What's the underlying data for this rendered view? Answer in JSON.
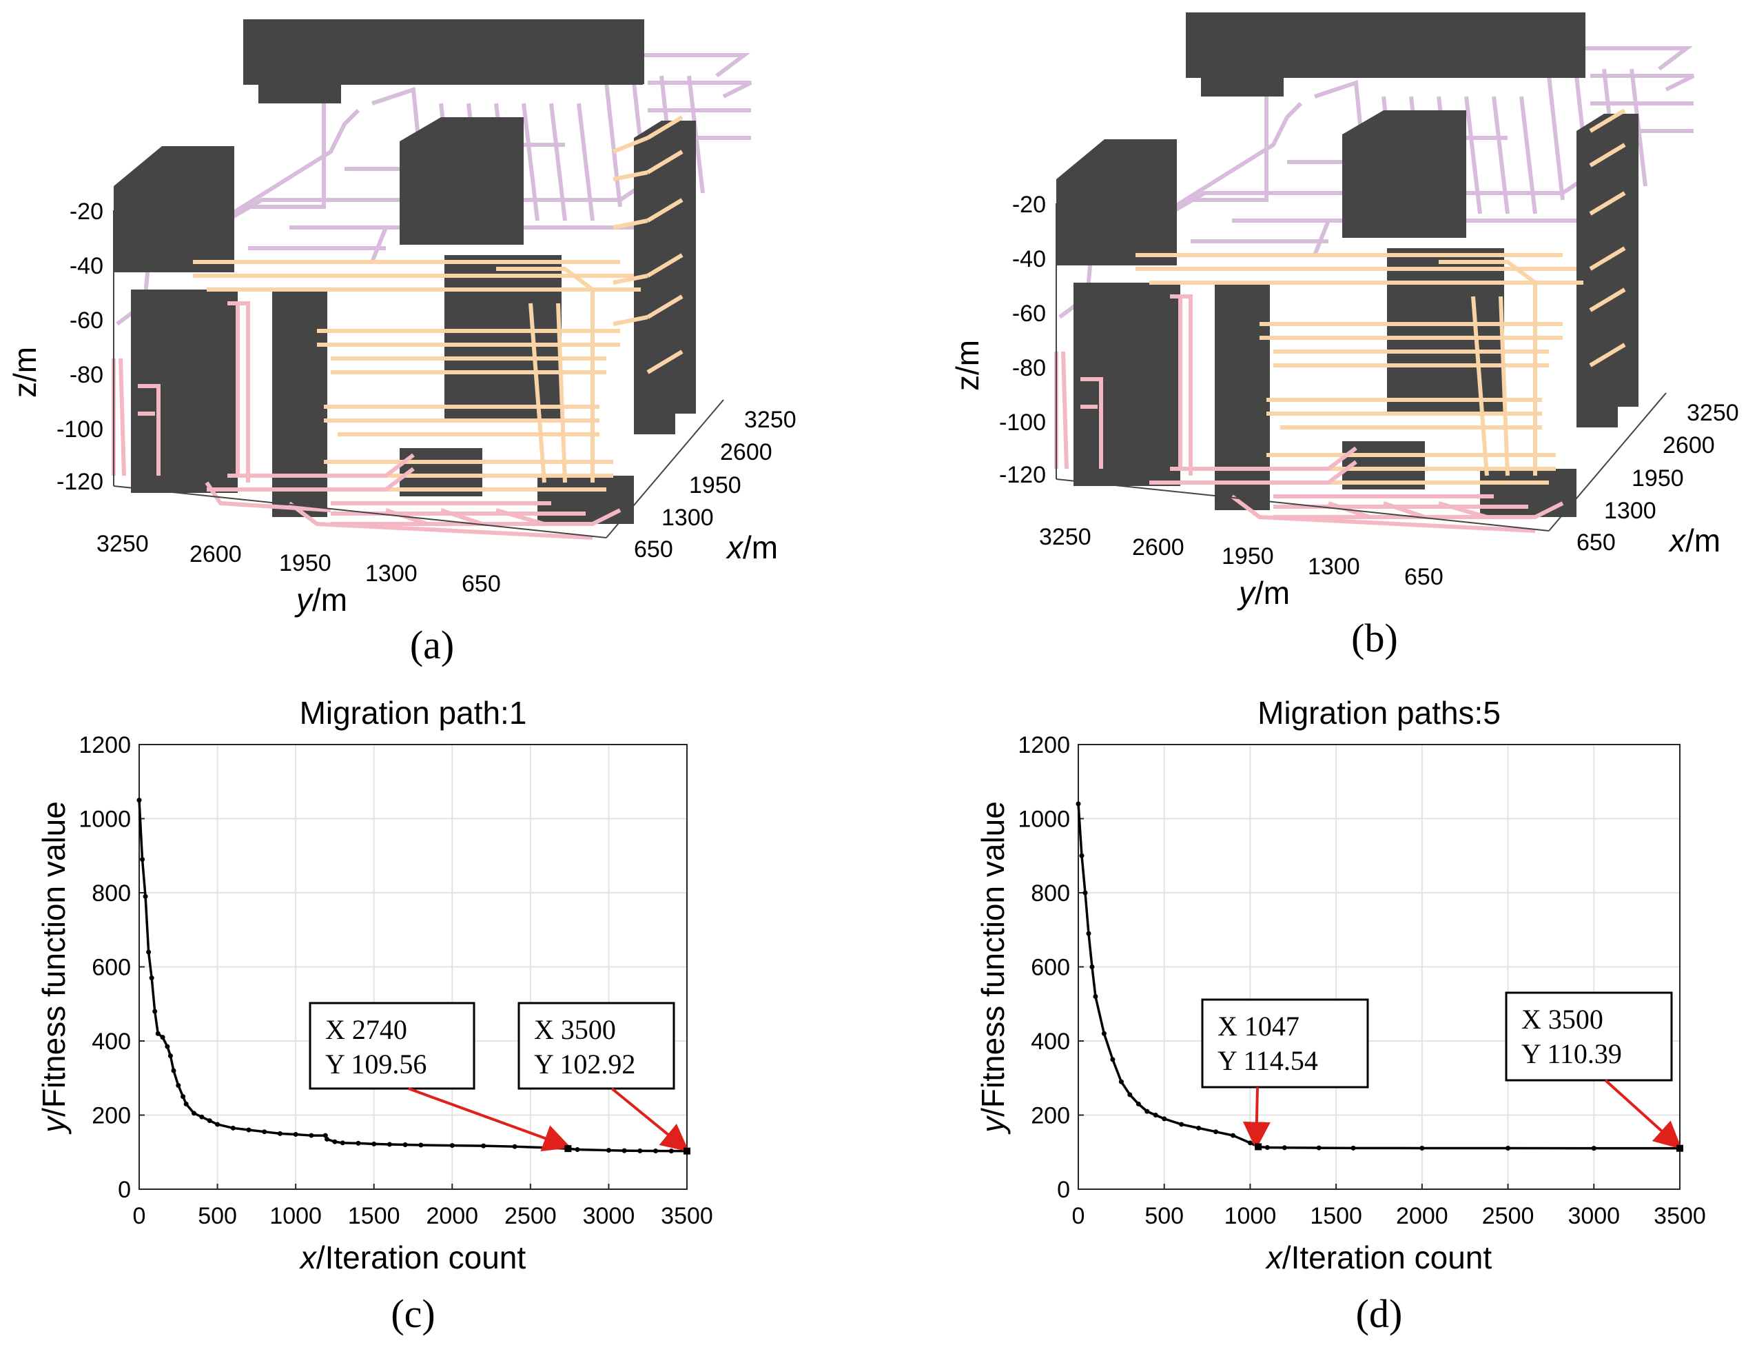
{
  "colors": {
    "obstacle": "#454545",
    "path_purple": "#d7bcdb",
    "path_orange": "#fad4a6",
    "path_pink": "#f4b7c4",
    "curve": "#000000",
    "annotation_arrow": "#e0201b"
  },
  "panels_3d": [
    {
      "label": "(a)",
      "z_axis": {
        "label": "z/m",
        "ticks": [
          "-20",
          "-40",
          "-60",
          "-80",
          "-100",
          "-120"
        ]
      },
      "y_axis": {
        "label_italic": "y",
        "label_rest": "/m",
        "ticks": [
          "3250",
          "2600",
          "1950",
          "1300",
          "650"
        ]
      },
      "x_axis": {
        "label_italic": "x",
        "label_rest": "/m",
        "ticks": [
          "3250",
          "2600",
          "1950",
          "1300",
          "650"
        ]
      }
    },
    {
      "label": "(b)",
      "z_axis": {
        "label": "z/m",
        "ticks": [
          "-20",
          "-40",
          "-60",
          "-80",
          "-100",
          "-120"
        ]
      },
      "y_axis": {
        "label_italic": "y",
        "label_rest": "/m",
        "ticks": [
          "3250",
          "2600",
          "1950",
          "1300",
          "650"
        ]
      },
      "x_axis": {
        "label_italic": "x",
        "label_rest": "/m",
        "ticks": [
          "3250",
          "2600",
          "1950",
          "1300",
          "650"
        ]
      }
    }
  ],
  "chart_data": [
    {
      "type": "scatter",
      "panel_label": "(c)",
      "title": "Migration path:1",
      "xlabel_italic": "x",
      "xlabel_rest": "/Iteration count",
      "ylabel_italic": "y",
      "ylabel_rest": "/Fitness function value",
      "xlim": [
        0,
        3500
      ],
      "ylim": [
        0,
        1200
      ],
      "xticks": [
        0,
        500,
        1000,
        1500,
        2000,
        2500,
        3000,
        3500
      ],
      "yticks": [
        0,
        200,
        400,
        600,
        800,
        1000,
        1200
      ],
      "grid": true,
      "series": [
        {
          "x": [
            0,
            20,
            40,
            60,
            80,
            100,
            120,
            150,
            180,
            200,
            220,
            250,
            280,
            300,
            350,
            400,
            450,
            500,
            600,
            700,
            800,
            900,
            1000,
            1100,
            1190,
            1200,
            1250,
            1300,
            1400,
            1500,
            1600,
            1700,
            1800,
            2000,
            2200,
            2400,
            2600,
            2740,
            2800,
            3000,
            3100,
            3200,
            3300,
            3400,
            3500
          ],
          "y": [
            1050,
            890,
            790,
            640,
            570,
            480,
            420,
            410,
            385,
            360,
            320,
            280,
            250,
            230,
            205,
            195,
            185,
            175,
            165,
            160,
            155,
            150,
            148,
            145,
            145,
            135,
            128,
            125,
            124,
            122,
            121,
            120,
            119,
            118,
            117,
            115,
            112,
            109.56,
            107,
            105,
            104,
            103.5,
            103.2,
            103,
            102.92
          ]
        }
      ],
      "annotations": [
        {
          "x": 2740,
          "y": 109.56,
          "line1": "X  2740",
          "line2": "Y  109.56"
        },
        {
          "x": 3500,
          "y": 102.92,
          "line1": "X  3500",
          "line2": "Y  102.92"
        }
      ]
    },
    {
      "type": "scatter",
      "panel_label": "(d)",
      "title": "Migration paths:5",
      "xlabel_italic": "x",
      "xlabel_rest": "/Iteration count",
      "ylabel_italic": "y",
      "ylabel_rest": "/Fitness function value",
      "xlim": [
        0,
        3500
      ],
      "ylim": [
        0,
        1200
      ],
      "xticks": [
        0,
        500,
        1000,
        1500,
        2000,
        2500,
        3000,
        3500
      ],
      "yticks": [
        0,
        200,
        400,
        600,
        800,
        1000,
        1200
      ],
      "grid": true,
      "series": [
        {
          "x": [
            0,
            20,
            40,
            60,
            80,
            100,
            150,
            200,
            250,
            300,
            350,
            400,
            450,
            500,
            600,
            700,
            800,
            900,
            1000,
            1047,
            1100,
            1200,
            1400,
            1600,
            2000,
            2500,
            3000,
            3500
          ],
          "y": [
            1040,
            900,
            800,
            690,
            600,
            520,
            420,
            350,
            290,
            255,
            230,
            210,
            200,
            190,
            175,
            165,
            155,
            145,
            125,
            114.54,
            112.5,
            112,
            111.5,
            111,
            110.8,
            110.6,
            110.5,
            110.39
          ]
        }
      ],
      "annotations": [
        {
          "x": 1047,
          "y": 114.54,
          "line1": "X  1047",
          "line2": "Y  114.54"
        },
        {
          "x": 3500,
          "y": 110.39,
          "line1": "X  3500",
          "line2": "Y  110.39"
        }
      ]
    }
  ]
}
